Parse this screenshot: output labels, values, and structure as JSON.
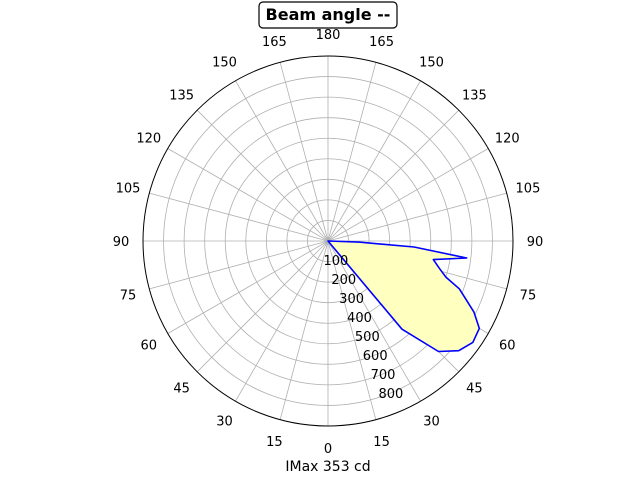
{
  "chart_data": {
    "type": "polar-line",
    "title": "Beam angle --",
    "xlabel": "IMax 353 cd",
    "angle_ticks": [
      "0",
      "15",
      "30",
      "45",
      "60",
      "75",
      "90",
      "105",
      "120",
      "135",
      "150",
      "165",
      "180",
      "165",
      "150",
      "135",
      "120",
      "105",
      "90",
      "75",
      "60",
      "45",
      "30",
      "15"
    ],
    "radial_ticks": [
      100,
      200,
      300,
      400,
      500,
      600,
      700,
      800
    ],
    "rlim": [
      0,
      900
    ],
    "grid": true,
    "series": [
      {
        "color": "#0000ff",
        "fill": "#ffffc0",
        "points": [
          {
            "angle": 0,
            "r": 0
          },
          {
            "angle": 40,
            "r": 560
          },
          {
            "angle": 45,
            "r": 760
          },
          {
            "angle": 50,
            "r": 830
          },
          {
            "angle": 55,
            "r": 860
          },
          {
            "angle": 60,
            "r": 850
          },
          {
            "angle": 64,
            "r": 790
          },
          {
            "angle": 67,
            "r": 730
          },
          {
            "angle": 70,
            "r": 680
          },
          {
            "angle": 73,
            "r": 600
          },
          {
            "angle": 76,
            "r": 560
          },
          {
            "angle": 80,
            "r": 520
          },
          {
            "angle": 83,
            "r": 680
          },
          {
            "angle": 86,
            "r": 420
          },
          {
            "angle": 88,
            "r": 150
          },
          {
            "angle": 90,
            "r": 0
          }
        ]
      }
    ]
  }
}
